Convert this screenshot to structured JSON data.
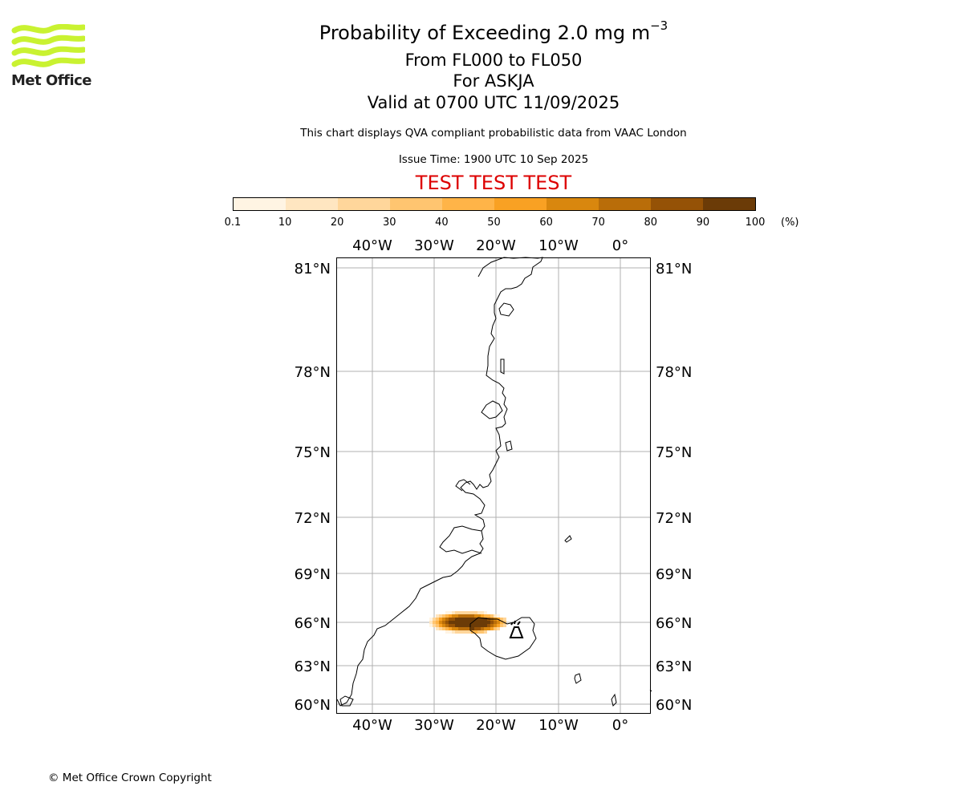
{
  "header": {
    "title_prefix": "Probability of Exceeding 2.0 mg m",
    "title_exp": "−3",
    "flight_levels": "From FL000 to FL050",
    "volcano": "For ASKJA",
    "valid": "Valid at 0700 UTC 11/09/2025",
    "description": "This chart displays QVA compliant probabilistic data from VAAC London",
    "issue_time": "Issue Time: 1900 UTC 10 Sep 2025",
    "test_banner": "TEST TEST TEST",
    "test_color": "#dd0000"
  },
  "logo": {
    "text": "Met Office",
    "icon": "met-office-waves-logo",
    "color": "#c9f231"
  },
  "colorbar": {
    "ticks": [
      "0.1",
      "10",
      "20",
      "30",
      "40",
      "50",
      "60",
      "70",
      "80",
      "90",
      "100"
    ],
    "unit": "(%)",
    "colors": [
      "#fff4e3",
      "#ffe6c1",
      "#ffd69b",
      "#ffc570",
      "#ffb448",
      "#f9a123",
      "#d9870e",
      "#b96d09",
      "#955206",
      "#6b3b07"
    ]
  },
  "map": {
    "lon_labels": [
      "40°W",
      "30°W",
      "20°W",
      "10°W",
      "0°"
    ],
    "lat_labels": [
      "81°N",
      "78°N",
      "75°N",
      "72°N",
      "69°N",
      "66°N",
      "63°N",
      "60°N"
    ],
    "volcano_marker": "volcano-icon",
    "plume_probability_pct": [
      0.1,
      100
    ]
  },
  "footer": {
    "copyright": "© Met Office Crown Copyright"
  }
}
